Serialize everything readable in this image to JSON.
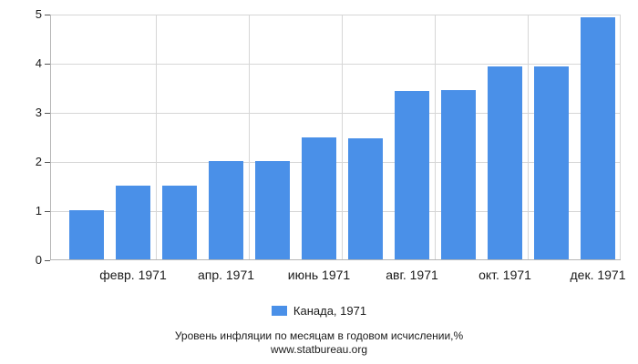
{
  "chart_data": {
    "type": "bar",
    "x": [
      1,
      2,
      3,
      4,
      5,
      6,
      7,
      8,
      9,
      10,
      11,
      12
    ],
    "values": [
      1.0,
      1.5,
      1.5,
      2.0,
      2.0,
      2.48,
      2.46,
      3.43,
      3.45,
      3.93,
      3.93,
      4.93
    ],
    "x_tick_labels": [
      "февр. 1971",
      "апр. 1971",
      "июнь 1971",
      "авг. 1971",
      "окт. 1971",
      "дек. 1971"
    ],
    "x_tick_positions": [
      2,
      4,
      6,
      8,
      10,
      12
    ],
    "y_ticks": [
      0,
      1,
      2,
      3,
      4,
      5
    ],
    "ylim": [
      0,
      5
    ],
    "grid": true,
    "legend_position": "bottom",
    "legend": "Канада, 1971",
    "title": "Уровень инфляции по месяцам в годовом исчислении,%",
    "source": "www.statbureau.org",
    "bar_color": "#4a90e8",
    "grid_color": "#d6d6d6"
  }
}
